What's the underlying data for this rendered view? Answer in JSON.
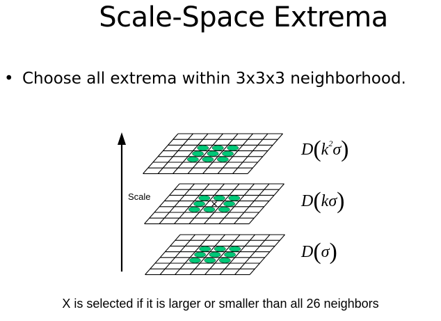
{
  "title": "Scale-Space Extrema",
  "bullet": {
    "symbol": "•",
    "text": "Choose all extrema within 3x3x3 neighborhood."
  },
  "diagram": {
    "axis_label": "Scale",
    "center_marker": "×",
    "layers": [
      {
        "fn": "D",
        "arg": "k",
        "sup": "2",
        "sigma": "σ"
      },
      {
        "fn": "D",
        "arg": "k",
        "sup": "",
        "sigma": "σ"
      },
      {
        "fn": "D",
        "arg": "",
        "sup": "",
        "sigma": "σ"
      }
    ],
    "colors": {
      "neighbor_fill": "#00c878",
      "grid_line": "#000000"
    }
  },
  "caption": "X is selected if it is larger or smaller than all 26 neighbors"
}
